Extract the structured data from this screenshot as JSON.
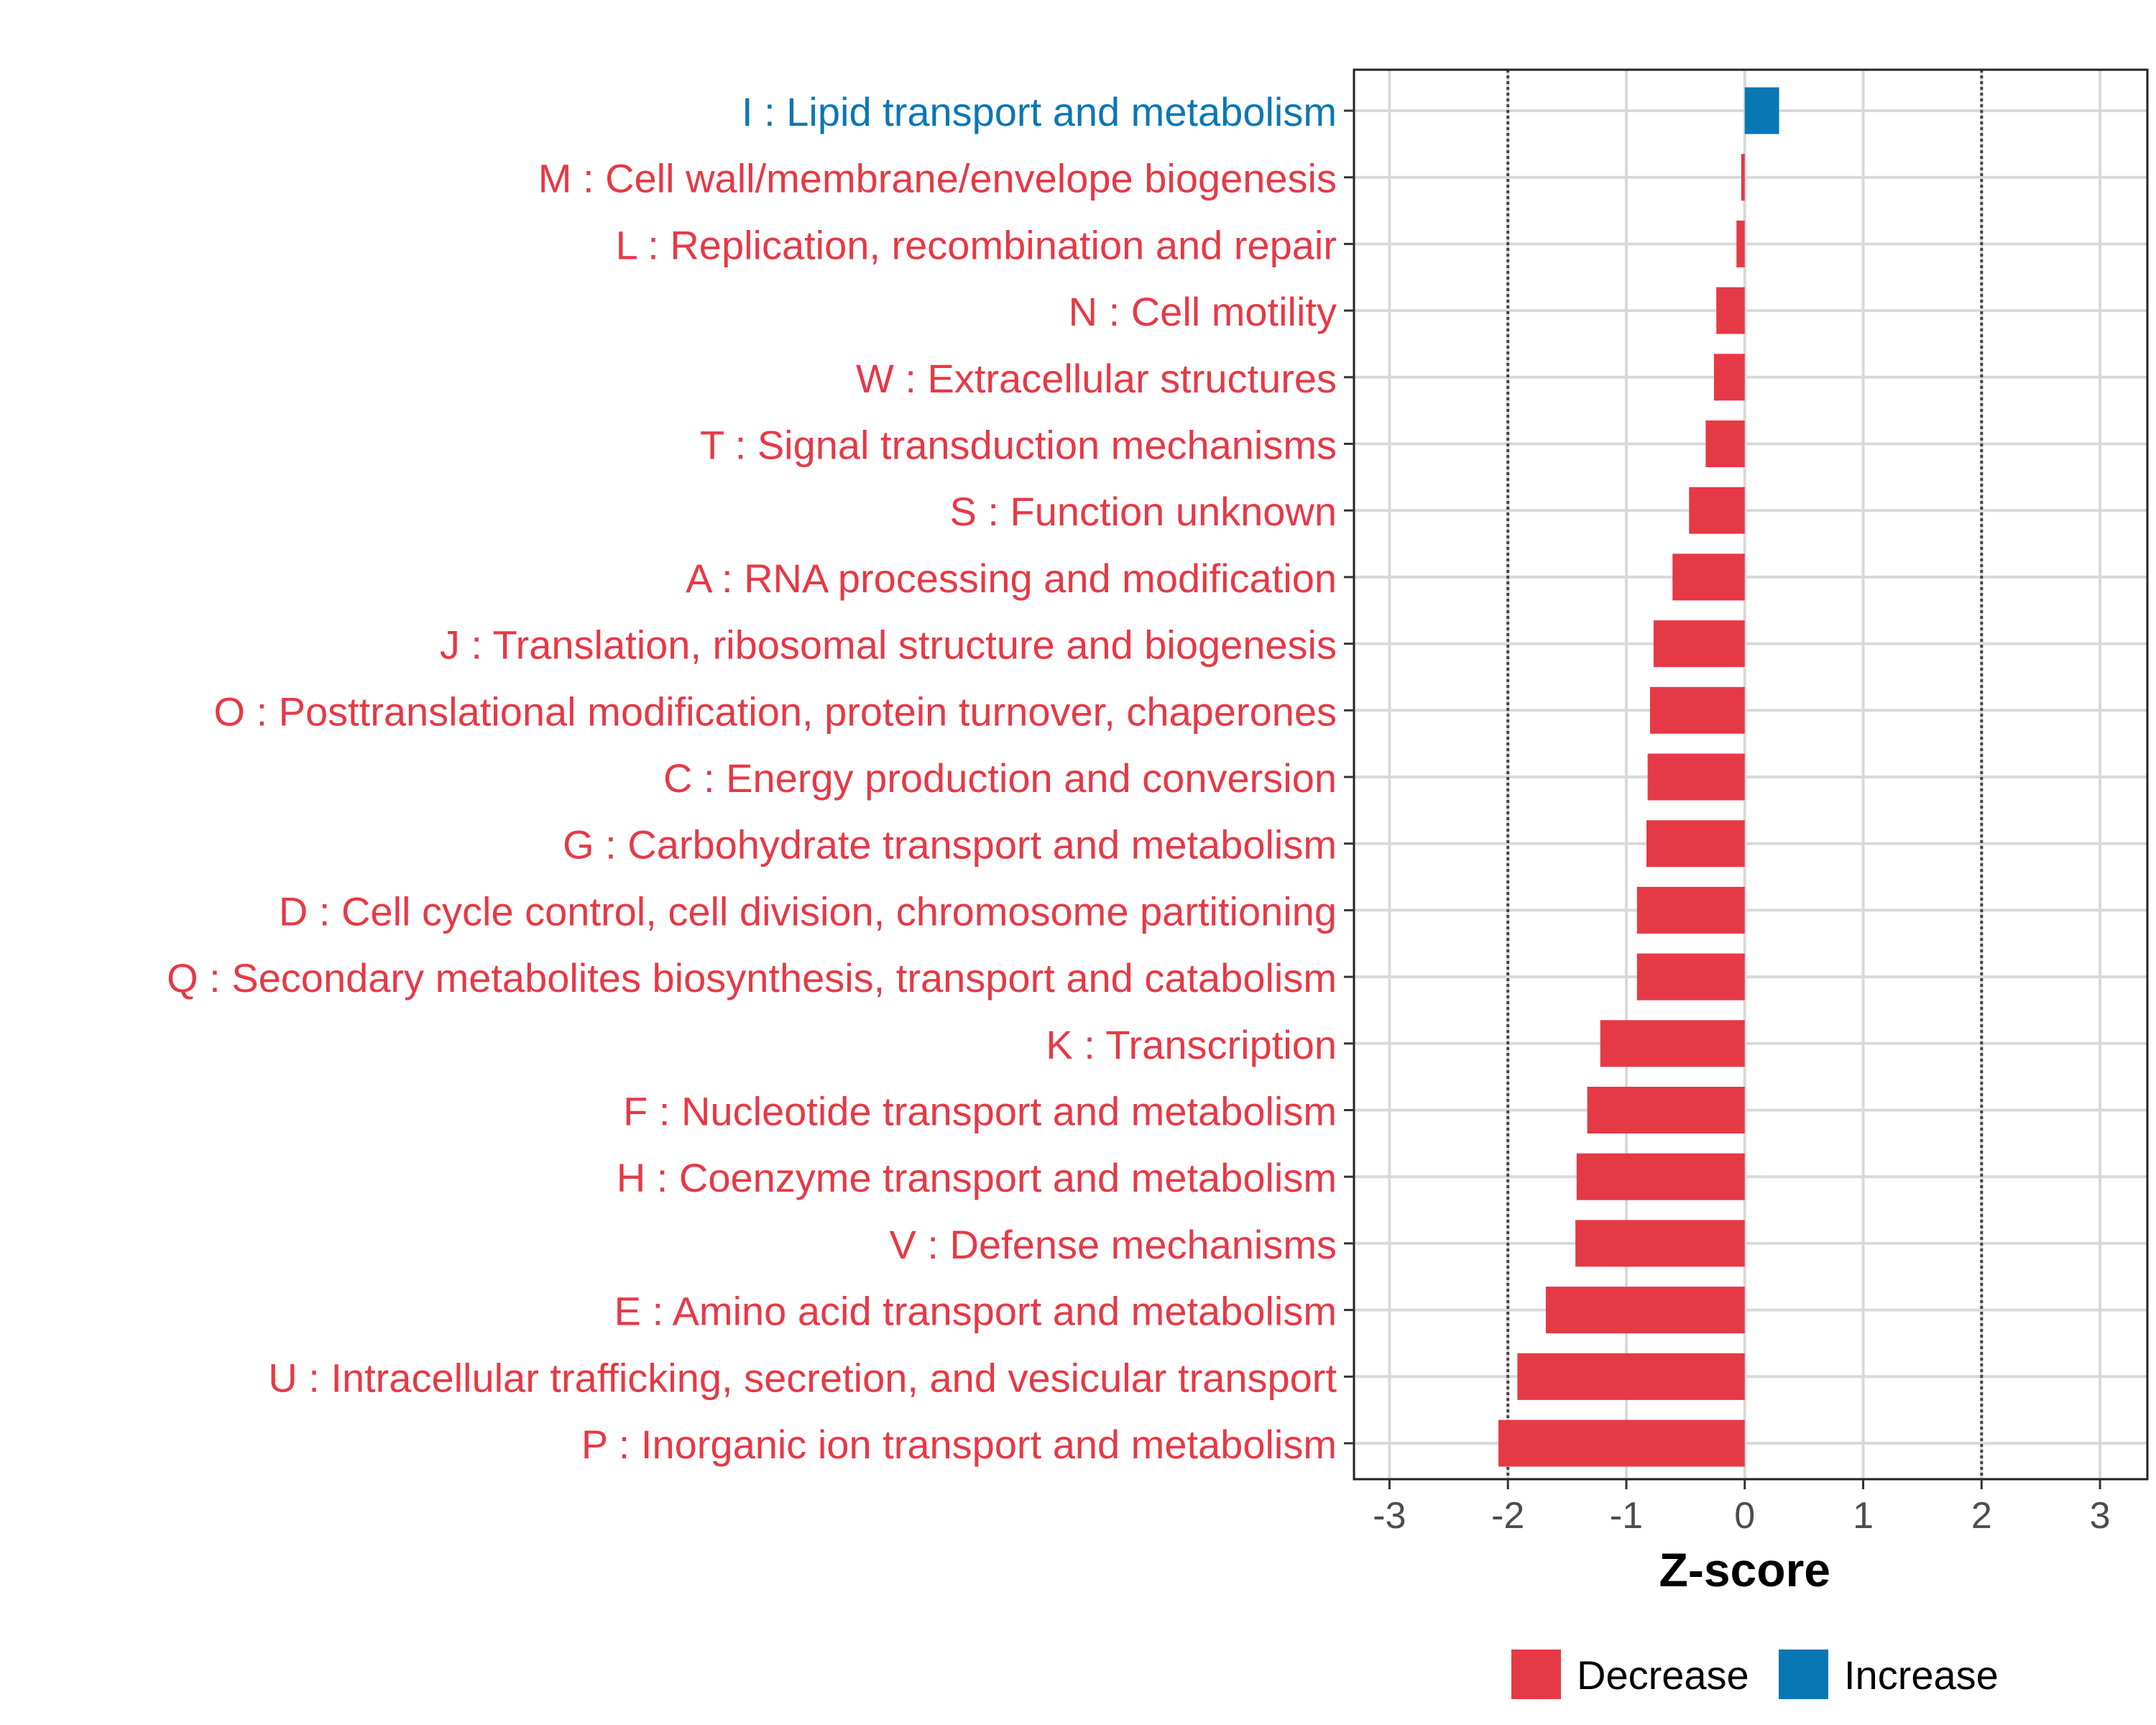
{
  "chart_data": {
    "type": "bar",
    "orientation": "horizontal",
    "title": "",
    "xlabel": "Z-score",
    "ylabel": "",
    "xlim": [
      -3.3,
      3.4
    ],
    "x_ticks": [
      -3,
      -2,
      -1,
      0,
      1,
      2,
      3
    ],
    "x_tick_labels": [
      "-3",
      "-2",
      "-1",
      "0",
      "1",
      "2",
      "3"
    ],
    "reference_lines": [
      -2,
      2
    ],
    "grid": true,
    "colors": {
      "Decrease": "#e63946",
      "Increase": "#0a77b5"
    },
    "categories": [
      "I : Lipid transport and metabolism",
      "M : Cell wall/membrane/envelope biogenesis",
      "L : Replication, recombination and repair",
      "N : Cell motility",
      "W : Extracellular structures",
      "T : Signal transduction mechanisms",
      "S : Function unknown",
      "A : RNA processing and modification",
      "J : Translation, ribosomal structure and biogenesis",
      "O : Posttranslational modification, protein turnover, chaperones",
      "C : Energy production and conversion",
      "G : Carbohydrate transport and metabolism",
      "D : Cell cycle control, cell division, chromosome partitioning",
      "Q : Secondary metabolites biosynthesis, transport and catabolism",
      "K : Transcription",
      "F : Nucleotide transport and metabolism",
      "H : Coenzyme transport and metabolism",
      "V : Defense mechanisms",
      "E : Amino acid transport and metabolism",
      "U : Intracellular trafficking, secretion, and vesicular transport",
      "P : Inorganic ion transport and metabolism"
    ],
    "values": [
      0.29,
      -0.03,
      -0.07,
      -0.24,
      -0.26,
      -0.33,
      -0.47,
      -0.61,
      -0.77,
      -0.8,
      -0.82,
      -0.83,
      -0.91,
      -0.91,
      -1.22,
      -1.33,
      -1.42,
      -1.43,
      -1.68,
      -1.92,
      -2.08
    ],
    "groups": [
      "Increase",
      "Decrease",
      "Decrease",
      "Decrease",
      "Decrease",
      "Decrease",
      "Decrease",
      "Decrease",
      "Decrease",
      "Decrease",
      "Decrease",
      "Decrease",
      "Decrease",
      "Decrease",
      "Decrease",
      "Decrease",
      "Decrease",
      "Decrease",
      "Decrease",
      "Decrease",
      "Decrease"
    ],
    "legend": {
      "position": "bottom",
      "entries": [
        {
          "label": "Decrease",
          "color": "#e63946"
        },
        {
          "label": "Increase",
          "color": "#0a77b5"
        }
      ]
    }
  }
}
